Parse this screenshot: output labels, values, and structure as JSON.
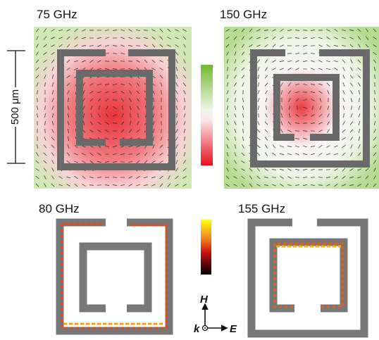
{
  "panels": [
    {
      "label": "75 GHz"
    },
    {
      "label": "150 GHz"
    },
    {
      "label": "80 GHz"
    },
    {
      "label": "155 GHz"
    }
  ],
  "scale_bar": {
    "label": "500 μm"
  },
  "axes": {
    "h": "H",
    "k": "k",
    "e": "E"
  }
}
